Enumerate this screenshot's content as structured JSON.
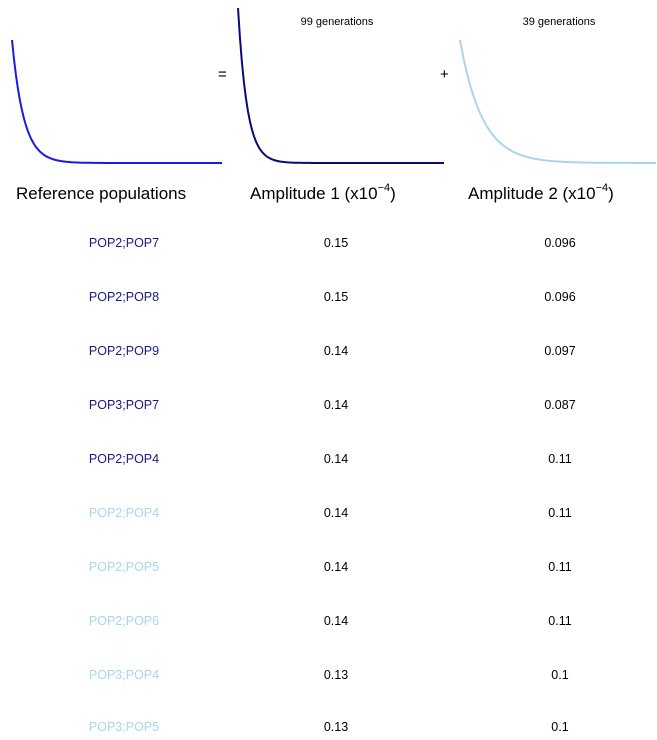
{
  "colors": {
    "panel0": "#1a1ae0",
    "panel1": "#0a0a78",
    "panel2": "#a9d6ea",
    "dark_label": "#191980",
    "light_label": "#a9d6ea"
  },
  "operators": {
    "equals": "=",
    "plus": "+"
  },
  "panels": [
    {
      "name": "",
      "decay": 0.085
    },
    {
      "name": "99 generations",
      "decay": 0.11
    },
    {
      "name": "39 generations",
      "decay": 0.045
    }
  ],
  "chart_data": {
    "type": "table",
    "headers": {
      "col0": "Reference populations",
      "col1_base": "Amplitude 1 (x10",
      "col1_exp": "−4",
      "col2_base": "Amplitude 2 (x10",
      "col2_exp": "−4",
      "close": ")"
    },
    "rows": [
      {
        "pop": "POP2;POP7",
        "amp1": "0.15",
        "amp2": "0.096",
        "group": "dark"
      },
      {
        "pop": "POP2;POP8",
        "amp1": "0.15",
        "amp2": "0.096",
        "group": "dark"
      },
      {
        "pop": "POP2;POP9",
        "amp1": "0.14",
        "amp2": "0.097",
        "group": "dark"
      },
      {
        "pop": "POP3;POP7",
        "amp1": "0.14",
        "amp2": "0.087",
        "group": "dark"
      },
      {
        "pop": "POP2;POP4",
        "amp1": "0.14",
        "amp2": "0.11",
        "group": "dark"
      },
      {
        "pop": "POP2;POP4",
        "amp1": "0.14",
        "amp2": "0.11",
        "group": "light"
      },
      {
        "pop": "POP2;POP5",
        "amp1": "0.14",
        "amp2": "0.11",
        "group": "light"
      },
      {
        "pop": "POP2;POP6",
        "amp1": "0.14",
        "amp2": "0.11",
        "group": "light"
      },
      {
        "pop": "POP3;POP4",
        "amp1": "0.13",
        "amp2": "0.1",
        "group": "light"
      },
      {
        "pop": "POP3;POP5",
        "amp1": "0.13",
        "amp2": "0.1",
        "group": "light"
      }
    ]
  }
}
